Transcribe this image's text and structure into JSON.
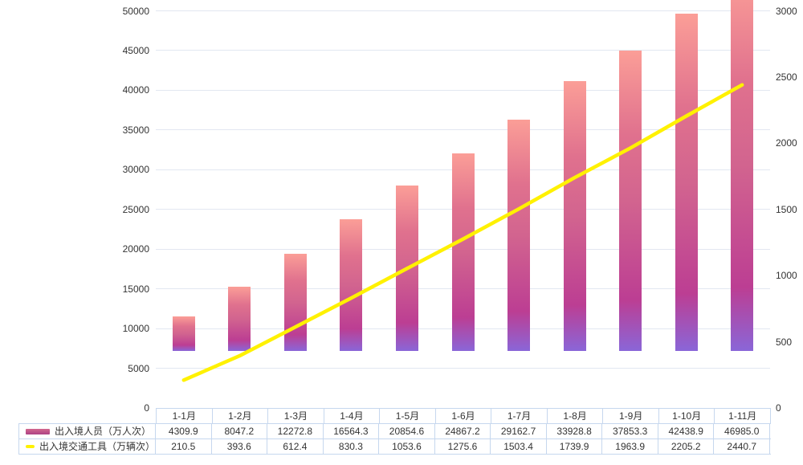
{
  "chart_data": {
    "type": "bar+line dual-axis combo",
    "categories": [
      "1-1月",
      "1-2月",
      "1-3月",
      "1-4月",
      "1-5月",
      "1-6月",
      "1-7月",
      "1-8月",
      "1-9月",
      "1-10月",
      "1-11月"
    ],
    "series": [
      {
        "name": "出入境人员（万人次）",
        "type": "bar",
        "axis": "left",
        "values": [
          4309.9,
          8047.2,
          12272.8,
          16564.3,
          20854.6,
          24867.2,
          29162.7,
          33928.8,
          37853.3,
          42438.9,
          46985.0
        ]
      },
      {
        "name": "出入境交通工具（万辆次）",
        "type": "line",
        "axis": "right",
        "values": [
          210.5,
          393.6,
          612.4,
          830.3,
          1053.6,
          1275.6,
          1503.4,
          1739.9,
          1963.9,
          2205.2,
          2440.7
        ]
      }
    ],
    "left_axis": {
      "min": 0,
      "max": 50000,
      "step": 5000,
      "ticks": [
        "0",
        "5000",
        "10000",
        "15000",
        "20000",
        "25000",
        "30000",
        "35000",
        "40000",
        "45000",
        "50000"
      ]
    },
    "right_axis": {
      "min": 0,
      "max": 3000,
      "step": 500,
      "ticks": [
        "0",
        "500",
        "1000",
        "1500",
        "2000",
        "2500",
        "3000"
      ]
    },
    "title": "",
    "grid": true,
    "legend_position": "bottom-left table",
    "value_decimals": 1
  },
  "colors": {
    "bar_gradient_top": "#fb9e97",
    "bar_gradient_mid": "#bc3e93",
    "bar_gradient_bottom": "#8a66d8",
    "line": "#fff100",
    "gridline": "#e2e7f1",
    "table_border": "#c6d7ee",
    "text": "#333333"
  }
}
